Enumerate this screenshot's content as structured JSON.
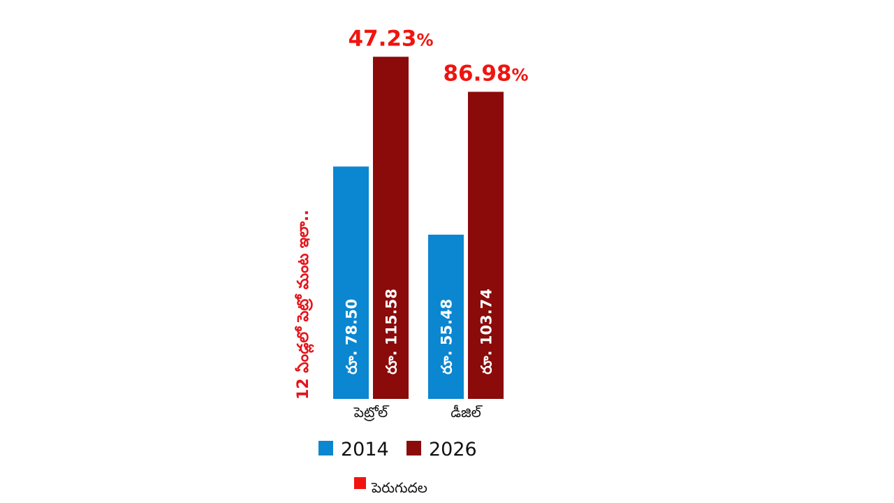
{
  "chart_data": {
    "type": "bar",
    "title": "12 ఏండ్లలో పెట్రో మంట ఇలా..",
    "categories": [
      "పెట్రోల్",
      "డీజిల్"
    ],
    "series": [
      {
        "name": "2014",
        "color": "#0b86d1",
        "values": [
          78.5,
          55.48
        ],
        "labels": [
          "రూ. 78.50",
          "రూ. 55.48"
        ]
      },
      {
        "name": "2026",
        "color": "#8b0a0a",
        "values": [
          115.58,
          103.74
        ],
        "labels": [
          "రూ. 115.58",
          "రూ. 103.74"
        ]
      }
    ],
    "increase": {
      "label": "పెరుగుదల",
      "color": "#f0140f",
      "values": [
        "47.23",
        "86.98"
      ],
      "unit": "%"
    },
    "ylim": [
      0,
      118
    ],
    "grid": false,
    "legend": "bottom"
  }
}
